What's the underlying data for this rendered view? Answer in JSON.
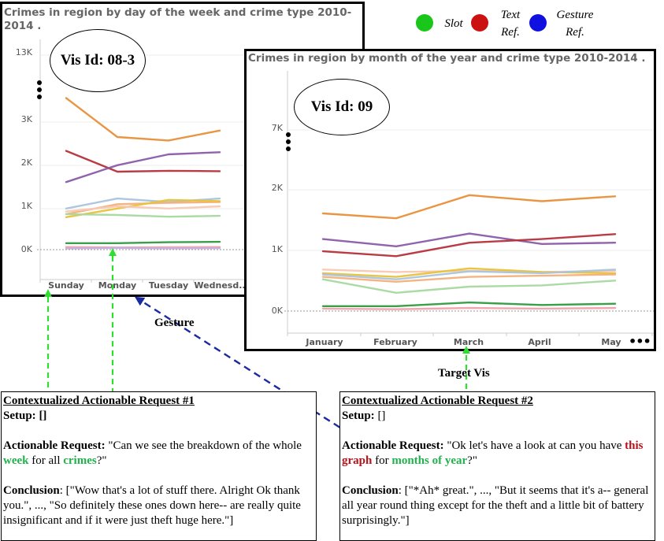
{
  "legend": {
    "items": [
      {
        "label_line1": "Slot",
        "label_line2": "",
        "color": "#19c619"
      },
      {
        "label_line1": "Text",
        "label_line2": "Ref.",
        "color": "#cc1111"
      },
      {
        "label_line1": "Gesture",
        "label_line2": "Ref.",
        "color": "#1010e0"
      }
    ]
  },
  "vis1": {
    "title_line1": "Crimes in region by day of the week and crime type 2010-",
    "title_line2": "2014 .",
    "vis_id": "Vis Id: 08-3",
    "y_ticks": [
      "13K",
      "3K",
      "2K",
      "1K",
      "0K"
    ],
    "x_ticks": [
      "Sunday",
      "Monday",
      "Tuesday",
      "Wednesd.."
    ]
  },
  "vis2": {
    "title": "Crimes in region by month of the year and crime type 2010-2014 .",
    "vis_id": "Vis Id: 09",
    "y_ticks": [
      "7K",
      "2K",
      "1K",
      "0K"
    ],
    "x_ticks": [
      "January",
      "February",
      "March",
      "April",
      "May"
    ],
    "more_marker": "•••"
  },
  "annotations": {
    "gesture": "Gesture",
    "target_vis": "Target Vis"
  },
  "request1": {
    "title": "Contextualized Actionable Request #1",
    "setup_label": "Setup:",
    "setup_value": " []",
    "request_label": "Actionable Request:",
    "req_pre": " \"Can we see the breakdown of the whole ",
    "req_slot1": "week",
    "req_mid": " for all ",
    "req_slot2": "crimes",
    "req_post": "?\"",
    "conclusion_label": "Conclusion",
    "conclusion_text": ": [\"Wow that's a lot of stuff there. Alright Ok thank you.\", ..., \"So definitely these ones down here-- are really quite insignificant and if it were just theft huge here.\"]"
  },
  "request2": {
    "title": "Contextualized Actionable Request #2",
    "setup_label": "Setup:",
    "setup_value": " []",
    "request_label": "Actionable Request:",
    "req_pre": " \"Ok let's have a look at can you have ",
    "req_ref": "this graph",
    "req_mid": " for ",
    "req_slot": "months of year",
    "req_post": "?\"",
    "conclusion_label": "Conclusion",
    "conclusion_text": ": [\"*Ah* great.\", ..., \"But it seems that it's a-- general all year round thing except for the theft and a little bit of battery surprisingly.\"]"
  },
  "chart_data": [
    {
      "type": "line",
      "title": "Crimes in region by day of the week and crime type 2010-2014 .",
      "categories": [
        "Sunday",
        "Monday",
        "Tuesday",
        "Wednesd.."
      ],
      "y_ticks": [
        "0K",
        "1K",
        "2K",
        "3K",
        "13K"
      ],
      "series": [
        {
          "color": "#e8903a",
          "values": [
            3500,
            2600,
            2520,
            2750
          ]
        },
        {
          "color": "#b5313a",
          "values": [
            2280,
            1800,
            1820,
            1810
          ]
        },
        {
          "color": "#8a5ca8",
          "values": [
            1560,
            1950,
            2200,
            2250
          ]
        },
        {
          "color": "#a9c4dc",
          "values": [
            950,
            1180,
            1100,
            1180
          ]
        },
        {
          "color": "#f3b07a",
          "values": [
            820,
            1050,
            1080,
            1100
          ]
        },
        {
          "color": "#e8c23a",
          "values": [
            750,
            950,
            1150,
            1120
          ]
        },
        {
          "color": "#f7c8b2",
          "values": [
            880,
            1000,
            950,
            1000
          ]
        },
        {
          "color": "#a8d8a0",
          "values": [
            820,
            800,
            760,
            780
          ]
        },
        {
          "color": "#2e9a3e",
          "values": [
            150,
            150,
            170,
            180
          ]
        },
        {
          "color": "#f0a0a8",
          "values": [
            60,
            50,
            55,
            60
          ]
        },
        {
          "color": "#c6aedc",
          "values": [
            30,
            40,
            30,
            35
          ]
        }
      ]
    },
    {
      "type": "line",
      "title": "Crimes in region by month of the year and crime type 2010-2014 .",
      "categories": [
        "January",
        "February",
        "March",
        "April",
        "May"
      ],
      "y_ticks": [
        "0K",
        "1K",
        "2K",
        "7K"
      ],
      "series": [
        {
          "color": "#e8903a",
          "values": [
            1600,
            1520,
            1900,
            1800,
            1880
          ]
        },
        {
          "color": "#8a5ca8",
          "values": [
            1180,
            1060,
            1270,
            1100,
            1120
          ]
        },
        {
          "color": "#b5313a",
          "values": [
            980,
            900,
            1120,
            1180,
            1260
          ]
        },
        {
          "color": "#f7c8b2",
          "values": [
            680,
            640,
            660,
            640,
            660
          ]
        },
        {
          "color": "#e8c23a",
          "values": [
            620,
            560,
            700,
            640,
            620
          ]
        },
        {
          "color": "#a9c4dc",
          "values": [
            600,
            520,
            650,
            620,
            680
          ]
        },
        {
          "color": "#f3b07a",
          "values": [
            560,
            480,
            560,
            580,
            600
          ]
        },
        {
          "color": "#a8d8a0",
          "values": [
            520,
            300,
            400,
            420,
            500
          ]
        },
        {
          "color": "#2e9a3e",
          "values": [
            80,
            80,
            140,
            100,
            120
          ]
        },
        {
          "color": "#f0a0a8",
          "values": [
            40,
            30,
            50,
            40,
            50
          ]
        }
      ]
    }
  ]
}
